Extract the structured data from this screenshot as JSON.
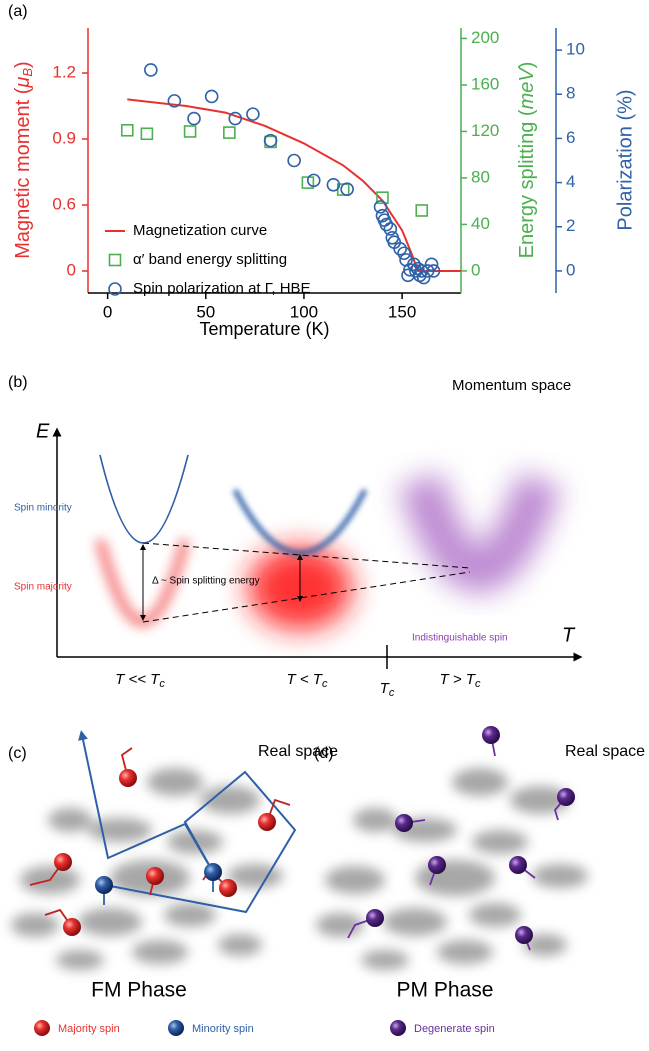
{
  "chart_data": {
    "type": "multi-axis",
    "panel_label": "(a)",
    "xlabel": "Temperature (K)",
    "ylabel": [
      "Magnetic moment (",
      "μ",
      "B",
      ")"
    ],
    "y2label": [
      "Energy splitting (",
      "meV",
      ")"
    ],
    "y3label": "Polarization (%)",
    "xlim": [
      -10,
      180
    ],
    "xticks": [
      0,
      50,
      100,
      150
    ],
    "ylim": [
      -0.2,
      1.4
    ],
    "yticks": [
      0,
      0.6,
      0.9,
      1.2
    ],
    "y2lim": [
      -19,
      209
    ],
    "y2ticks": [
      0,
      40,
      80,
      120,
      160,
      200
    ],
    "y3lim": [
      -1,
      11
    ],
    "y3ticks": [
      0,
      2,
      4,
      6,
      8,
      10
    ],
    "ycolor": "#e8312f",
    "y2color": "#4caf50",
    "y3color": "#2f62a8",
    "legend": "lower left",
    "series": [
      {
        "name": "Magnetization curve",
        "kind": "line",
        "axis": "y",
        "color": "#e8312f",
        "x": [
          10,
          20,
          40,
          60,
          80,
          100,
          120,
          130,
          140,
          150,
          155,
          158,
          180
        ],
        "values": [
          1.08,
          1.07,
          1.05,
          1.02,
          0.96,
          0.88,
          0.78,
          0.71,
          0.62,
          0.37,
          0.15,
          0,
          0
        ]
      },
      {
        "name": "α′ band energy splitting",
        "kind": "square",
        "axis": "y2",
        "color": "#4caf50",
        "x": [
          10,
          20,
          42,
          62,
          83,
          102,
          120,
          140,
          160
        ],
        "values": [
          121,
          118,
          120,
          119,
          111,
          76,
          70,
          63,
          52
        ]
      },
      {
        "name": "Spin polarization at Γ, HBE",
        "kind": "circle",
        "axis": "y3",
        "color": "#2f62a8",
        "x": [
          22,
          34,
          44,
          53,
          65,
          74,
          83,
          95,
          105,
          115,
          122,
          139,
          140,
          141,
          142,
          144,
          145,
          146,
          149,
          151,
          152,
          153,
          154,
          156,
          157,
          158,
          159,
          160,
          161,
          163,
          165,
          166
        ],
        "values": [
          9.1,
          7.7,
          6.9,
          7.9,
          6.9,
          7.1,
          5.9,
          5.0,
          4.1,
          3.9,
          3.7,
          2.9,
          2.5,
          2.3,
          2.1,
          1.9,
          1.5,
          1.3,
          1.0,
          0.8,
          0.5,
          -0.2,
          0.05,
          0.3,
          0,
          0.1,
          -0.2,
          0,
          -0.3,
          0,
          0.3,
          0
        ]
      }
    ]
  },
  "panel_b": {
    "label": "(b)",
    "e_axis": "E",
    "t_axis": "T",
    "title": "Momentum space",
    "spin_minority": "Spin minority",
    "spin_majority": "Spin majority",
    "delta": "Δ ~ Spin splitting energy",
    "indistinguishable": "Indistinguishable spin",
    "t_labels": [
      {
        "text": "T << T",
        "sub": "c"
      },
      {
        "text": "T < T",
        "sub": "c"
      },
      {
        "text": "T",
        "sub": "c"
      },
      {
        "text": "T > T",
        "sub": "c"
      }
    ]
  },
  "panel_c": {
    "label": "(c)",
    "title": "Real space",
    "phase": "FM Phase",
    "legend": [
      "Majority spin",
      "Minority spin"
    ]
  },
  "panel_d": {
    "label": "(d)",
    "title": "Real space",
    "phase": "PM Phase",
    "legend": [
      "Degenerate spin"
    ]
  }
}
